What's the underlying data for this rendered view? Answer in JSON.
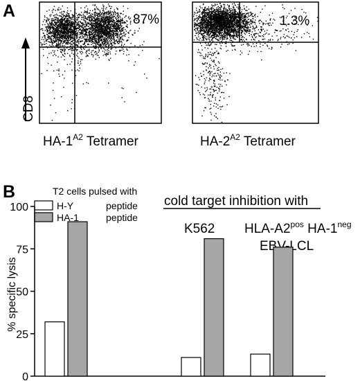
{
  "panel_a": {
    "label": "A",
    "y_axis_label": "CD8",
    "plots": [
      {
        "percent": "87%",
        "xlabel_main": "HA-1",
        "xlabel_sup": "A2",
        "xlabel_tail": " Tetramer"
      },
      {
        "percent": "1.3%",
        "xlabel_main": "HA-2",
        "xlabel_sup": "A2",
        "xlabel_tail": " Tetramer"
      }
    ]
  },
  "panel_b": {
    "label": "B",
    "legend_title": "T2 cells pulsed with",
    "legend": [
      {
        "name": "H-Y",
        "suffix": "peptide",
        "color": "#ffffff"
      },
      {
        "name": "HA-1",
        "suffix": "peptide",
        "color": "#a6a6a6"
      }
    ],
    "heading": "cold target inhibition with",
    "group_labels": {
      "k562": "K562",
      "lcl_prefix": "HLA-A2",
      "lcl_sup1": "pos",
      "lcl_middle": " HA-1",
      "lcl_sup2": "neg",
      "lcl_line2": "EBV-LCL"
    }
  },
  "chart_data": {
    "type": "bar",
    "ylabel": "% specific lysis",
    "ylim": [
      0,
      100
    ],
    "yticks": [
      "0",
      "25",
      "50",
      "75",
      "100"
    ],
    "groups": [
      "T2 cells pulsed with",
      "K562",
      "HLA-A2pos HA-1neg EBV-LCL"
    ],
    "series": [
      {
        "name": "H-Y peptide",
        "color": "#ffffff",
        "values": [
          32,
          11,
          13
        ]
      },
      {
        "name": "HA-1 peptide",
        "color": "#a6a6a6",
        "values": [
          91,
          81,
          76
        ]
      }
    ]
  }
}
